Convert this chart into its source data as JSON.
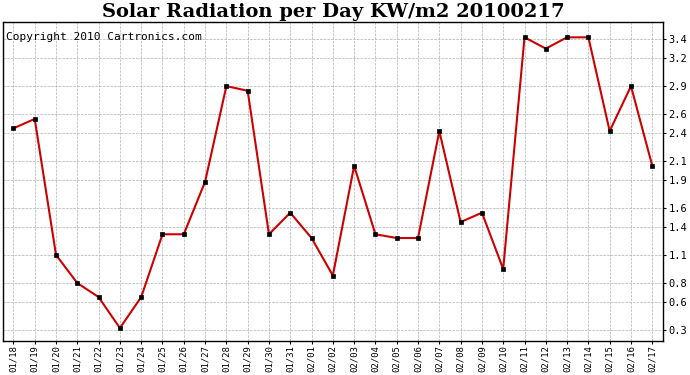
{
  "title": "Solar Radiation per Day KW/m2 20100217",
  "copyright": "Copyright 2010 Cartronics.com",
  "labels": [
    "01/18",
    "01/19",
    "01/20",
    "01/21",
    "01/22",
    "01/23",
    "01/24",
    "01/25",
    "01/26",
    "01/27",
    "01/28",
    "01/29",
    "01/30",
    "01/31",
    "02/01",
    "02/02",
    "02/03",
    "02/04",
    "02/05",
    "02/06",
    "02/07",
    "02/08",
    "02/09",
    "02/10",
    "02/11",
    "02/12",
    "02/13",
    "02/14",
    "02/15",
    "02/16",
    "02/17"
  ],
  "values": [
    2.45,
    2.55,
    1.1,
    0.8,
    0.65,
    0.32,
    0.65,
    1.32,
    1.32,
    1.88,
    2.9,
    2.85,
    1.32,
    1.55,
    1.28,
    0.88,
    2.05,
    1.32,
    1.28,
    1.28,
    2.42,
    1.45,
    1.55,
    0.95,
    3.42,
    3.3,
    3.42,
    3.42,
    2.42,
    2.9,
    2.05
  ],
  "line_color": "#cc0000",
  "marker_color": "#000000",
  "bg_color": "#ffffff",
  "grid_color": "#b0b0b0",
  "yticks": [
    0.3,
    0.6,
    0.8,
    1.1,
    1.4,
    1.6,
    1.9,
    2.1,
    2.4,
    2.6,
    2.9,
    3.2,
    3.4
  ],
  "ylim": [
    0.18,
    3.58
  ],
  "title_fontsize": 14,
  "copyright_fontsize": 8
}
